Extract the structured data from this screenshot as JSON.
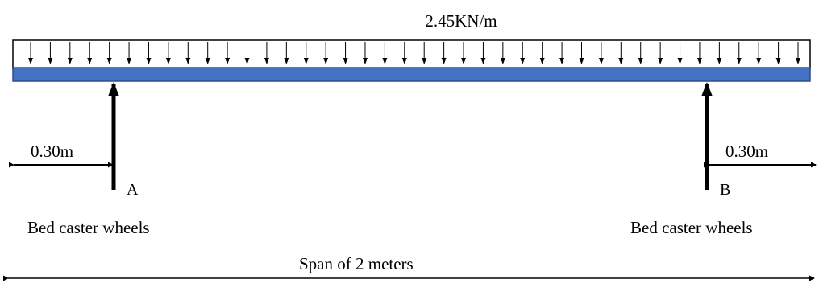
{
  "load": {
    "label": "2.45KN/m"
  },
  "supports": [
    {
      "name": "A",
      "caption": "Bed caster wheels",
      "offset_label": "0.30m"
    },
    {
      "name": "B",
      "caption": "Bed caster wheels",
      "offset_label": "0.30m"
    }
  ],
  "span": {
    "label": "Span of 2 meters"
  },
  "colors": {
    "beam": "#4472C4",
    "beam_outline": "#2E4E8A",
    "lines": "#000000"
  }
}
